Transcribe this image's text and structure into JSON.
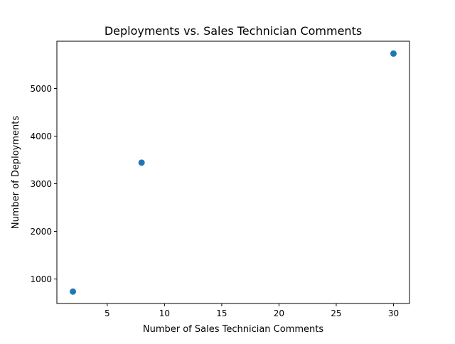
{
  "chart_data": {
    "type": "scatter",
    "title": "Deployments vs. Sales Technician Comments",
    "xlabel": "Number of Sales Technician Comments",
    "ylabel": "Number of Deployments",
    "xlim": [
      0.6,
      31.4
    ],
    "ylim": [
      486,
      5993
    ],
    "xticks": [
      5,
      10,
      15,
      20,
      25,
      30
    ],
    "yticks": [
      1000,
      2000,
      3000,
      4000,
      5000
    ],
    "grid": false,
    "series": [
      {
        "name": "Deployments",
        "color": "#1f77b4",
        "points": [
          {
            "x": 2,
            "y": 736
          },
          {
            "x": 8,
            "y": 3443
          },
          {
            "x": 30,
            "y": 5733
          }
        ]
      }
    ]
  }
}
